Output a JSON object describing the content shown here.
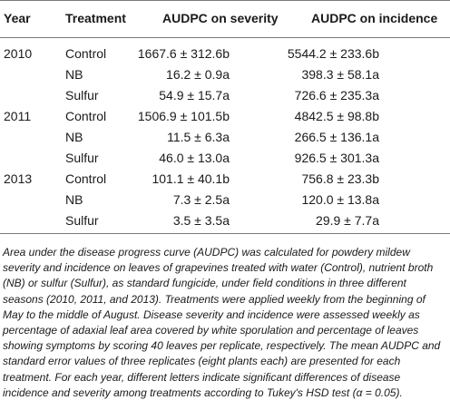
{
  "table": {
    "headers": {
      "year": "Year",
      "treatment": "Treatment",
      "severity": "AUDPC on severity",
      "incidence": "AUDPC on incidence"
    },
    "rows": [
      {
        "year": "2010",
        "treatment": "Control",
        "severity": "1667.6 ± 312.6b",
        "incidence": "5544.2 ± 233.6b"
      },
      {
        "year": "",
        "treatment": "NB",
        "severity": "16.2 ± 0.9a",
        "incidence": "398.3 ± 58.1a"
      },
      {
        "year": "",
        "treatment": "Sulfur",
        "severity": "54.9 ± 15.7a",
        "incidence": "726.6 ± 235.3a"
      },
      {
        "year": "2011",
        "treatment": "Control",
        "severity": "1506.9 ± 101.5b",
        "incidence": "4842.5 ± 98.8b"
      },
      {
        "year": "",
        "treatment": "NB",
        "severity": "11.5 ± 6.3a",
        "incidence": "266.5 ± 136.1a"
      },
      {
        "year": "",
        "treatment": "Sulfur",
        "severity": "46.0 ± 13.0a",
        "incidence": "926.5 ± 301.3a"
      },
      {
        "year": "2013",
        "treatment": "Control",
        "severity": "101.1 ± 40.1b",
        "incidence": "756.8 ± 23.3b"
      },
      {
        "year": "",
        "treatment": "NB",
        "severity": "7.3 ± 2.5a",
        "incidence": "120.0 ± 13.8a"
      },
      {
        "year": "",
        "treatment": "Sulfur",
        "severity": "3.5 ± 3.5a",
        "incidence": "29.9 ± 7.7a"
      }
    ]
  },
  "caption": "Area under the disease progress curve (AUDPC) was calculated for powdery mildew severity and incidence on leaves of grapevines treated with water (Control), nutrient broth (NB) or sulfur (Sulfur), as standard fungicide, under field conditions in three different seasons (2010, 2011, and 2013). Treatments were applied weekly from the beginning of May to the middle of August. Disease severity and incidence were assessed weekly as percentage of adaxial leaf area covered by white sporulation and percentage of leaves showing symptoms by scoring 40 leaves per replicate, respectively. The mean AUDPC and standard error values of three replicates (eight plants each) are presented for each treatment. For each year, different letters indicate significant differences of disease incidence and severity among treatments according to Tukey's HSD test (α = 0.05)."
}
